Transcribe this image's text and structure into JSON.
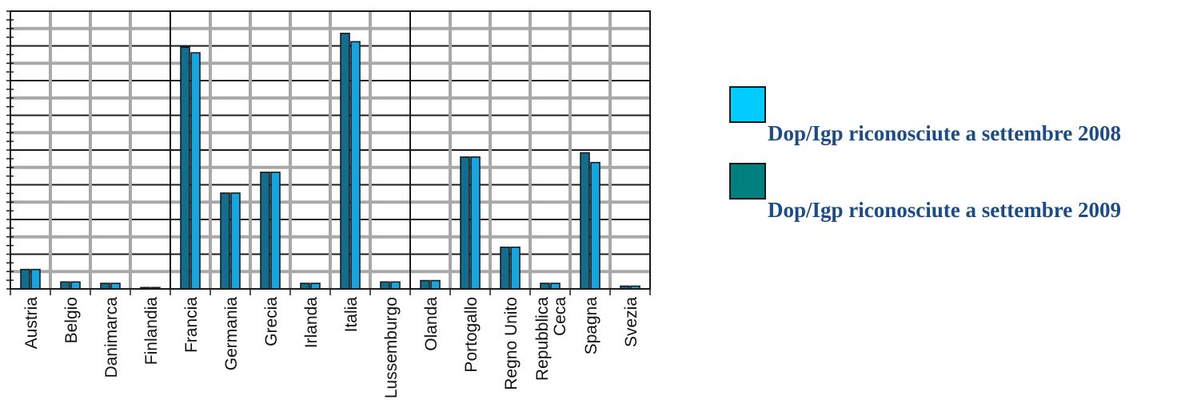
{
  "chart_data": {
    "type": "bar",
    "title": "",
    "xlabel": "",
    "ylabel": "",
    "categories": [
      "Austria",
      "Belgio",
      "Danimarca",
      "Finlandia",
      "Francia",
      "Germania",
      "Grecia",
      "Irlanda",
      "Italia",
      "Lussemburgo",
      "Olanda",
      "Portogallo",
      "Regno Unito",
      "Repubblica Ceca",
      "Spagna",
      "Svezia"
    ],
    "series": [
      {
        "name": "Dop/Igp riconosciute a settembre 2009",
        "color": "#126e8f",
        "values": [
          14,
          5,
          4,
          1,
          174,
          69,
          84,
          4,
          184,
          5,
          6,
          95,
          30,
          4,
          98,
          2
        ]
      },
      {
        "name": "Dop/Igp riconosciute a settembre 2008",
        "color": "#12a6e2",
        "values": [
          14,
          5,
          4,
          1,
          170,
          69,
          84,
          4,
          178,
          5,
          6,
          95,
          30,
          4,
          91,
          2
        ]
      }
    ],
    "ylim": [
      0,
      200
    ],
    "y_gridline_step": 12.5,
    "grid": true,
    "y_tick_labels_shown": false,
    "legend_placement": "right"
  },
  "legend": {
    "items": [
      {
        "label": "Dop/Igp riconosciute a settembre 2008",
        "color": "#00ccff"
      },
      {
        "label": "Dop/Igp riconosciute a settembre 2009",
        "color": "#007f7f"
      }
    ]
  }
}
